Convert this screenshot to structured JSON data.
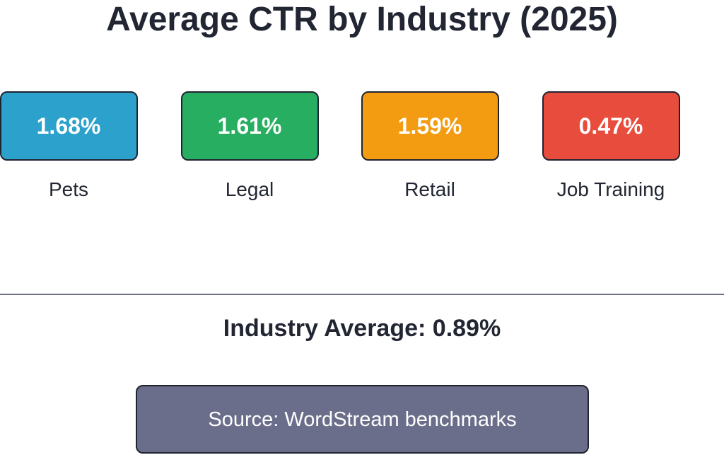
{
  "chart_data": {
    "type": "table",
    "title": "Average CTR by Industry (2025)",
    "unit": "%",
    "categories": [
      "Pets",
      "Legal",
      "Retail",
      "Job Training"
    ],
    "values": [
      1.68,
      1.61,
      1.59,
      0.47
    ],
    "value_labels": [
      "1.68%",
      "1.61%",
      "1.59%",
      "0.47%"
    ],
    "colors": [
      "#2ba1cc",
      "#27ae60",
      "#f39c12",
      "#e74c3c"
    ],
    "average_label": "Industry Average: 0.89%",
    "average_value": 0.89,
    "source": "Source: WordStream benchmarks"
  }
}
